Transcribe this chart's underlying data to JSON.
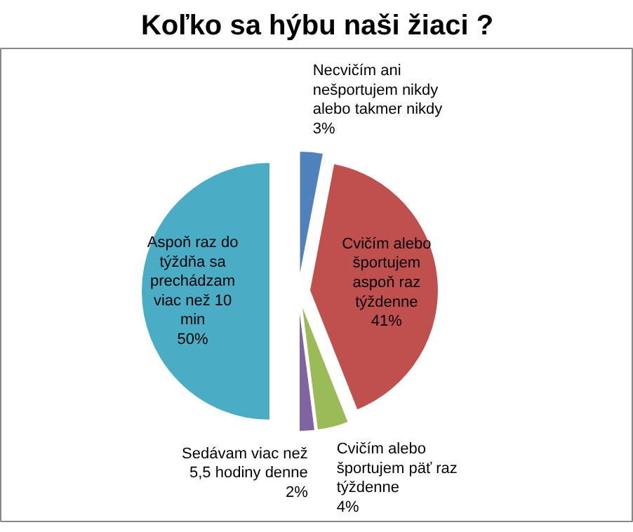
{
  "chart_data": {
    "type": "pie",
    "title": "Koľko sa hýbu naši žiaci ?",
    "categories": [
      "Necvičím ani nešportujem nikdy alebo takmer nikdy",
      "Cvičím alebo športujem aspoň raz týždenne",
      "Cvičím alebo športujem päť raz týždenne",
      "Sedávam viac než 5,5 hodiny denne",
      "Aspoň raz do týždňa sa prechádzam viac než 10 min"
    ],
    "values": [
      3,
      41,
      4,
      2,
      50
    ],
    "value_labels": [
      "3%",
      "41%",
      "4%",
      "2%",
      "50%"
    ],
    "colors": [
      "#4f81bd",
      "#c0504d",
      "#9bbb59",
      "#8064a2",
      "#4bacc6"
    ]
  }
}
